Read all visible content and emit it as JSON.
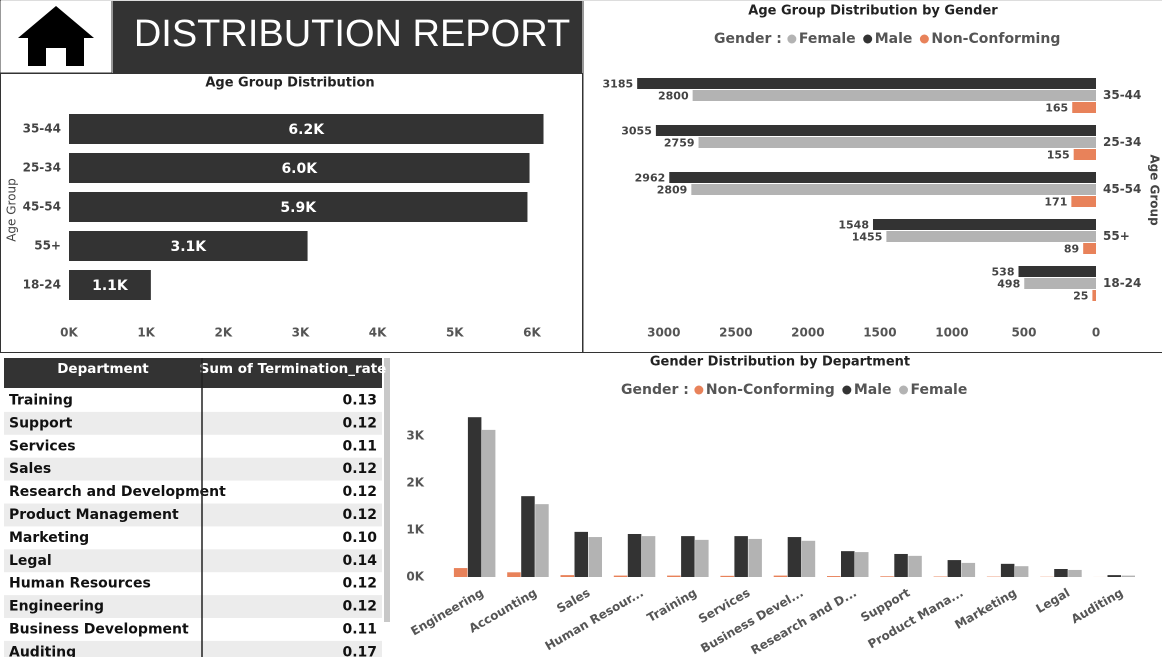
{
  "header": {
    "title": "DISTRIBUTION REPORT"
  },
  "chart_data": [
    {
      "type": "bar",
      "orientation": "horizontal",
      "title": "Age Group Distribution",
      "y_label": "Age Group",
      "categories": [
        "35-44",
        "25-34",
        "45-54",
        "55+",
        "18-24"
      ],
      "values": [
        6150,
        5969,
        5942,
        3092,
        1061
      ],
      "value_labels": [
        "6.2K",
        "6.0K",
        "5.9K",
        "3.1K",
        "1.1K"
      ],
      "color": "#333333",
      "xlim": [
        0,
        6400
      ],
      "xticks": [
        {
          "value": 0,
          "label": "0K"
        },
        {
          "value": 1000,
          "label": "1K"
        },
        {
          "value": 2000,
          "label": "2K"
        },
        {
          "value": 3000,
          "label": "3K"
        },
        {
          "value": 4000,
          "label": "4K"
        },
        {
          "value": 5000,
          "label": "5K"
        },
        {
          "value": 6000,
          "label": "6K"
        }
      ]
    },
    {
      "type": "bar",
      "orientation": "horizontal",
      "title": "Age Group Distribution by Gender",
      "y_label": "Age Group",
      "legend_title": "Gender :",
      "categories": [
        "35-44",
        "25-34",
        "45-54",
        "55+",
        "18-24"
      ],
      "series": [
        {
          "name": "Female",
          "color": "#b3b3b3",
          "values": [
            2800,
            2759,
            2809,
            1455,
            498
          ]
        },
        {
          "name": "Male",
          "color": "#333333",
          "values": [
            3185,
            3055,
            2962,
            1548,
            538
          ]
        },
        {
          "name": "Non-Conforming",
          "color": "#e8825a",
          "values": [
            165,
            155,
            171,
            89,
            25
          ]
        }
      ],
      "xlim": [
        0,
        3200
      ],
      "x_reversed": true,
      "xticks": [
        0,
        500,
        1000,
        1500,
        2000,
        2500,
        3000
      ]
    },
    {
      "type": "bar",
      "orientation": "vertical",
      "title": "Gender Distribution by Department",
      "legend_title": "Gender :",
      "categories": [
        "Engineering",
        "Accounting",
        "Sales",
        "Human Resour...",
        "Training",
        "Services",
        "Business Devel...",
        "Research and D...",
        "Support",
        "Product Mana...",
        "Marketing",
        "Legal",
        "Auditing"
      ],
      "series": [
        {
          "name": "Non-Conforming",
          "color": "#e8825a",
          "values": [
            190,
            100,
            40,
            30,
            30,
            25,
            30,
            20,
            15,
            10,
            8,
            5,
            1
          ]
        },
        {
          "name": "Male",
          "color": "#333333",
          "values": [
            3400,
            1720,
            960,
            915,
            870,
            870,
            850,
            550,
            490,
            360,
            280,
            170,
            40
          ]
        },
        {
          "name": "Female",
          "color": "#b3b3b3",
          "values": [
            3130,
            1550,
            850,
            870,
            790,
            810,
            770,
            530,
            450,
            300,
            230,
            150,
            30
          ]
        }
      ],
      "ylim": [
        0,
        3500
      ],
      "yticks": [
        {
          "value": 0,
          "label": "0K"
        },
        {
          "value": 1000,
          "label": "1K"
        },
        {
          "value": 2000,
          "label": "2K"
        },
        {
          "value": 3000,
          "label": "3K"
        }
      ]
    }
  ],
  "table": {
    "columns": [
      "Department",
      "Sum of Termination_rate"
    ],
    "rows": [
      [
        "Training",
        "0.13"
      ],
      [
        "Support",
        "0.12"
      ],
      [
        "Services",
        "0.11"
      ],
      [
        "Sales",
        "0.12"
      ],
      [
        "Research and Development",
        "0.12"
      ],
      [
        "Product Management",
        "0.12"
      ],
      [
        "Marketing",
        "0.10"
      ],
      [
        "Legal",
        "0.14"
      ],
      [
        "Human Resources",
        "0.12"
      ],
      [
        "Engineering",
        "0.12"
      ],
      [
        "Business Development",
        "0.11"
      ],
      [
        "Auditing",
        "0.17"
      ]
    ]
  }
}
